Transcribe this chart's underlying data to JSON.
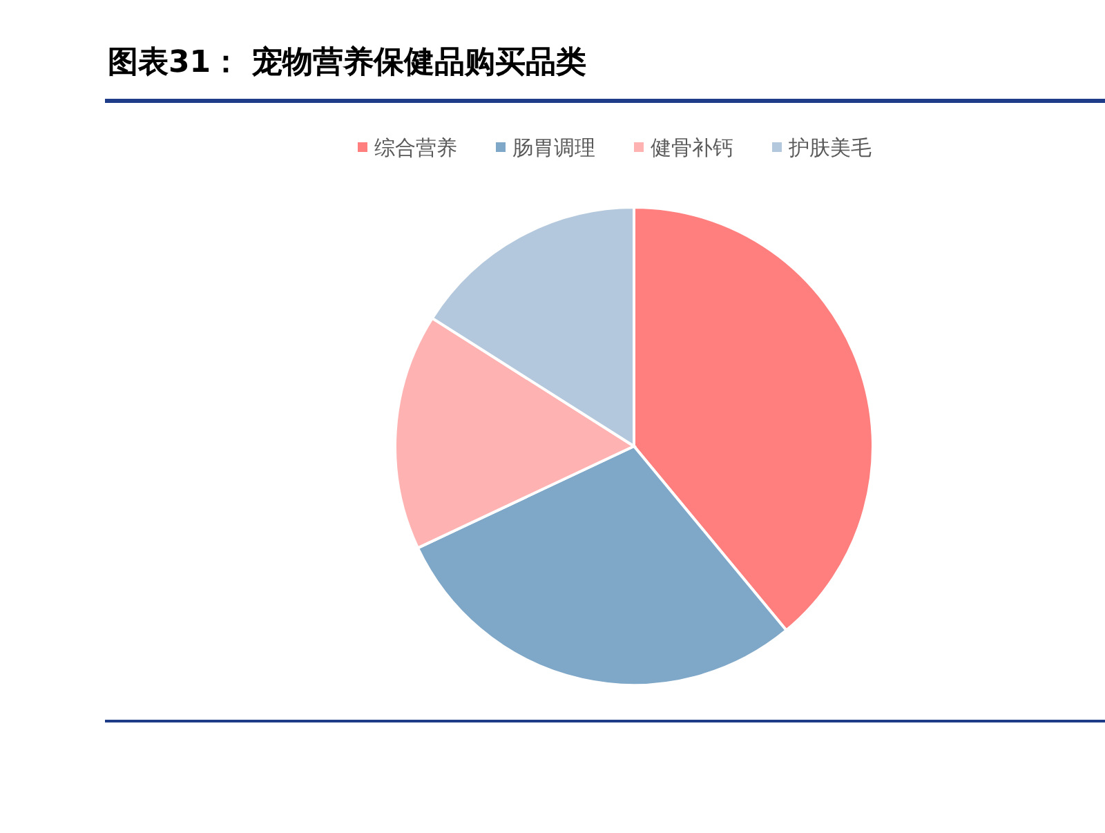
{
  "chart_data": {
    "type": "pie",
    "title": "图表31：  宠物营养保健品购买品类",
    "categories": [
      "综合营养",
      "肠胃调理",
      "健骨补钙",
      "护肤美毛"
    ],
    "values": [
      39,
      29,
      16,
      16
    ],
    "colors": [
      "#ff7f7e",
      "#7fa7c8",
      "#ffb2b2",
      "#b3c8dc"
    ],
    "legend": "top"
  }
}
